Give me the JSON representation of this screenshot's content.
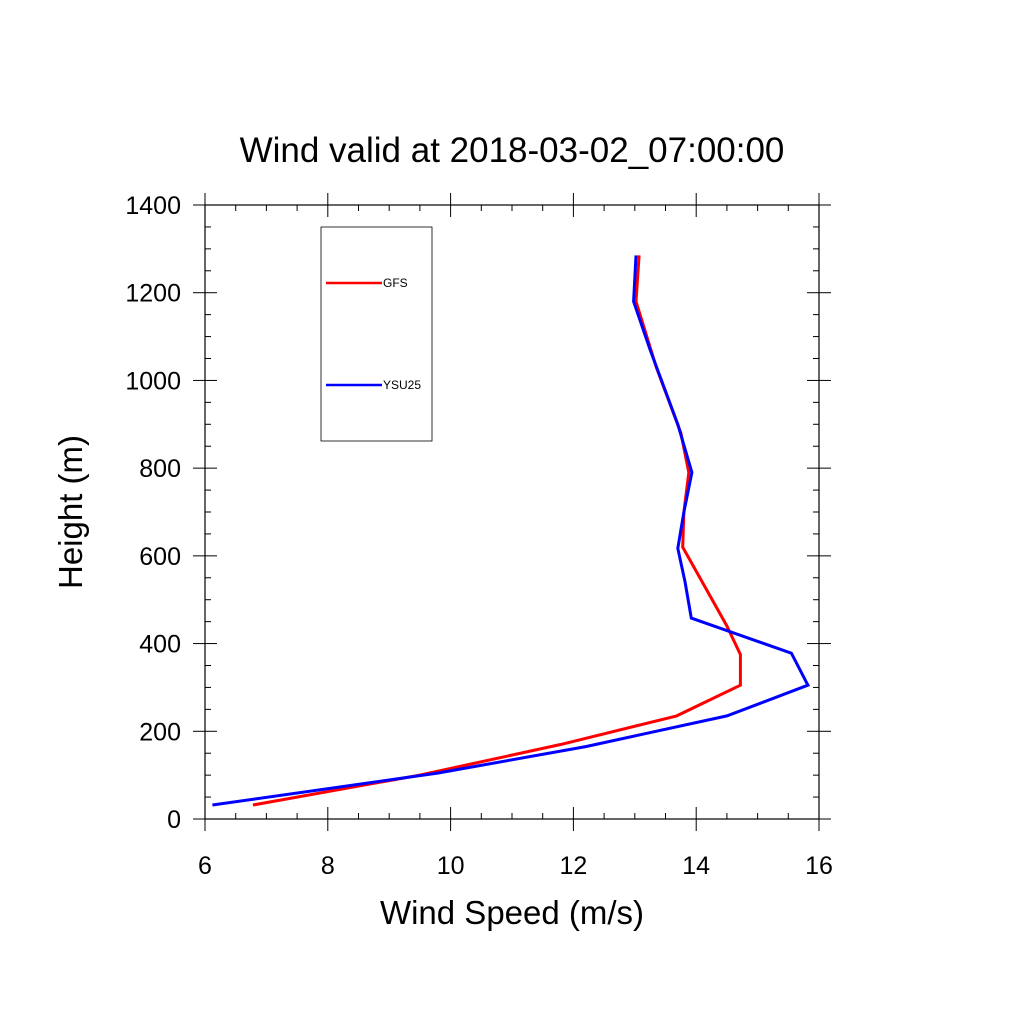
{
  "chart_data": {
    "type": "line",
    "title": "Wind valid at 2018-03-02_07:00:00",
    "xlabel": "Wind Speed (m/s)",
    "ylabel": "Height (m)",
    "xlim": [
      6,
      16
    ],
    "ylim": [
      0,
      1400
    ],
    "x_ticks": [
      "6",
      "8",
      "10",
      "12",
      "14",
      "16"
    ],
    "y_ticks": [
      "0",
      "200",
      "400",
      "600",
      "800",
      "1000",
      "1200",
      "1400"
    ],
    "grid": false,
    "legend_position": "top-left",
    "series": [
      {
        "name": "GFS",
        "color": "#ff0000",
        "points": [
          [
            6.78,
            32
          ],
          [
            9.5,
            100
          ],
          [
            11.8,
            170
          ],
          [
            13.68,
            235
          ],
          [
            14.72,
            305
          ],
          [
            14.72,
            375
          ],
          [
            14.5,
            440
          ],
          [
            13.78,
            620
          ],
          [
            13.8,
            700
          ],
          [
            13.88,
            790
          ],
          [
            13.75,
            880
          ],
          [
            13.35,
            1030
          ],
          [
            13.02,
            1180
          ],
          [
            13.07,
            1285
          ]
        ]
      },
      {
        "name": "YSU25",
        "color": "#0000ff",
        "points": [
          [
            6.12,
            32
          ],
          [
            9.8,
            105
          ],
          [
            12.2,
            165
          ],
          [
            14.5,
            235
          ],
          [
            15.82,
            305
          ],
          [
            15.55,
            378
          ],
          [
            13.92,
            458
          ],
          [
            13.82,
            540
          ],
          [
            13.7,
            617
          ],
          [
            13.8,
            700
          ],
          [
            13.93,
            790
          ],
          [
            13.7,
            900
          ],
          [
            13.25,
            1070
          ],
          [
            12.98,
            1180
          ],
          [
            13.02,
            1285
          ]
        ]
      }
    ]
  }
}
